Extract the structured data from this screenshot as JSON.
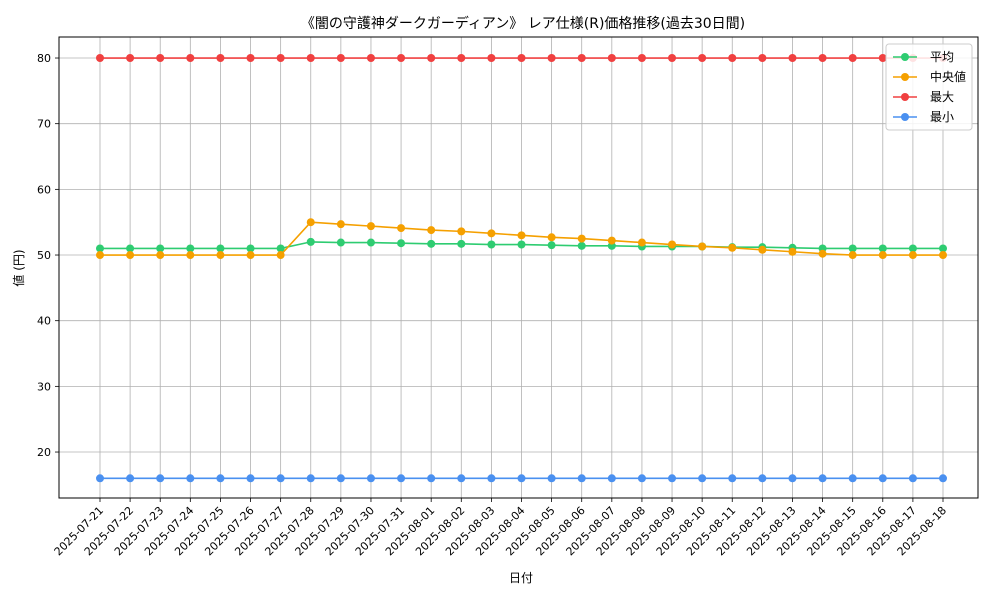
{
  "chart_data": {
    "type": "line",
    "title": "《闇の守護神ダークガーディアン》 レア仕様(R)価格推移(過去30日間)",
    "xlabel": "日付",
    "ylabel": "値 (円)",
    "ylim": [
      13.0,
      83.2
    ],
    "yticks": [
      20,
      30,
      40,
      50,
      60,
      70,
      80
    ],
    "grid": true,
    "legend_position": "top-right",
    "categories": [
      "2025-07-21",
      "2025-07-22",
      "2025-07-23",
      "2025-07-24",
      "2025-07-25",
      "2025-07-26",
      "2025-07-27",
      "2025-07-28",
      "2025-07-29",
      "2025-07-30",
      "2025-07-31",
      "2025-08-01",
      "2025-08-02",
      "2025-08-03",
      "2025-08-04",
      "2025-08-05",
      "2025-08-06",
      "2025-08-07",
      "2025-08-08",
      "2025-08-09",
      "2025-08-10",
      "2025-08-11",
      "2025-08-12",
      "2025-08-13",
      "2025-08-14",
      "2025-08-15",
      "2025-08-16",
      "2025-08-17",
      "2025-08-18"
    ],
    "series": [
      {
        "name": "平均",
        "color": "#2ecc71",
        "values": [
          51,
          51,
          51,
          51,
          51,
          51,
          51,
          52,
          51.9,
          51.9,
          51.8,
          51.7,
          51.7,
          51.6,
          51.6,
          51.5,
          51.4,
          51.4,
          51.3,
          51.3,
          51.3,
          51.2,
          51.2,
          51.1,
          51.0,
          51,
          51,
          51,
          51
        ]
      },
      {
        "name": "中央値",
        "color": "#f5a000",
        "values": [
          50,
          50,
          50,
          50,
          50,
          50,
          50,
          55,
          54.7,
          54.4,
          54.1,
          53.8,
          53.6,
          53.3,
          53,
          52.7,
          52.5,
          52.2,
          51.9,
          51.6,
          51.3,
          51.1,
          50.8,
          50.5,
          50.2,
          50,
          50,
          50,
          50
        ]
      },
      {
        "name": "最大",
        "color": "#f04040",
        "values": [
          80,
          80,
          80,
          80,
          80,
          80,
          80,
          80,
          80,
          80,
          80,
          80,
          80,
          80,
          80,
          80,
          80,
          80,
          80,
          80,
          80,
          80,
          80,
          80,
          80,
          80,
          80,
          80,
          80
        ]
      },
      {
        "name": "最小",
        "color": "#4a90f0",
        "values": [
          16,
          16,
          16,
          16,
          16,
          16,
          16,
          16,
          16,
          16,
          16,
          16,
          16,
          16,
          16,
          16,
          16,
          16,
          16,
          16,
          16,
          16,
          16,
          16,
          16,
          16,
          16,
          16,
          16
        ]
      }
    ]
  }
}
